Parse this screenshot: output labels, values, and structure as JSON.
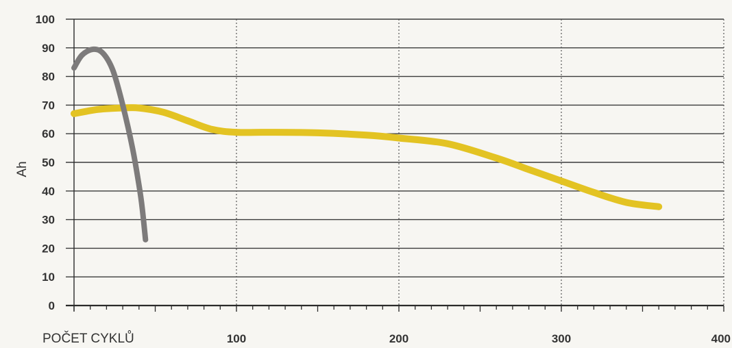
{
  "chart_data": {
    "type": "line",
    "xlabel": "POČET CYKLŮ",
    "ylabel": "Ah",
    "xlim": [
      0,
      400
    ],
    "ylim": [
      0,
      100
    ],
    "x_ticks": [
      "100",
      "200",
      "300",
      "400"
    ],
    "y_ticks": [
      "100",
      "90",
      "80",
      "70",
      "60",
      "50",
      "40",
      "30",
      "20",
      "10",
      "0"
    ],
    "grid": {
      "horizontal": "solid",
      "vertical": "dotted"
    },
    "series": [
      {
        "color": "#7d7b7b",
        "x": [
          0,
          5,
          12,
          18,
          24,
          30,
          36,
          40,
          42,
          44
        ],
        "y": [
          83,
          87.5,
          89.5,
          88,
          82,
          70,
          55,
          42,
          34,
          23
        ]
      },
      {
        "color": "#e3c323",
        "x": [
          0,
          15,
          30,
          40,
          55,
          70,
          85,
          100,
          120,
          150,
          180,
          200,
          230,
          260,
          280,
          300,
          320,
          340,
          360
        ],
        "y": [
          67,
          68.5,
          69,
          69,
          67.5,
          64.5,
          61.5,
          60.5,
          60.5,
          60.3,
          59.5,
          58.5,
          56.5,
          51.5,
          47.5,
          43.5,
          39.5,
          36,
          34.5
        ]
      }
    ]
  }
}
